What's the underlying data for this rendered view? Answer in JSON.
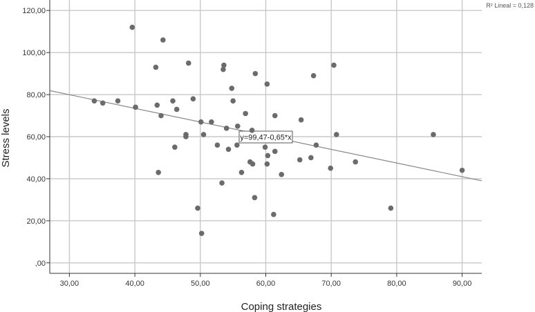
{
  "chart_data": {
    "type": "scatter",
    "title": "",
    "xlabel": "Coping strategies",
    "ylabel": "Stress levels",
    "xlim": [
      27,
      93
    ],
    "ylim": [
      -5,
      125
    ],
    "xticks": [
      30,
      40,
      50,
      60,
      70,
      80,
      90
    ],
    "yticks": [
      0,
      20,
      40,
      60,
      80,
      100,
      120
    ],
    "x_tick_labels": [
      "30,00",
      "40,00",
      "50,00",
      "60,00",
      "70,00",
      "80,00",
      "90,00"
    ],
    "y_tick_labels": [
      ",00",
      "20,00",
      "40,00",
      "60,00",
      "80,00",
      "100,00",
      "120,00"
    ],
    "grid": true,
    "r2_label": "R² Lineal = 0,128",
    "fit_line": {
      "label": "y=99,47-0,65*x",
      "intercept": 99.47,
      "slope": -0.65
    },
    "point_color": "#6b6b6b",
    "line_color": "#888888",
    "points": [
      [
        33.8,
        77
      ],
      [
        35.1,
        76
      ],
      [
        37.4,
        77
      ],
      [
        39.6,
        112
      ],
      [
        40.1,
        74
      ],
      [
        43.2,
        93
      ],
      [
        43.4,
        75
      ],
      [
        43.6,
        43
      ],
      [
        44.0,
        70
      ],
      [
        44.3,
        106
      ],
      [
        45.8,
        77
      ],
      [
        46.1,
        55
      ],
      [
        46.4,
        73
      ],
      [
        47.8,
        61
      ],
      [
        47.8,
        60
      ],
      [
        48.2,
        95
      ],
      [
        48.9,
        78
      ],
      [
        49.6,
        26
      ],
      [
        50.1,
        67
      ],
      [
        50.2,
        14
      ],
      [
        50.5,
        61
      ],
      [
        51.7,
        67
      ],
      [
        52.6,
        56
      ],
      [
        53.3,
        38
      ],
      [
        53.5,
        92
      ],
      [
        53.6,
        94
      ],
      [
        54.0,
        64
      ],
      [
        54.3,
        54
      ],
      [
        54.8,
        83
      ],
      [
        55.0,
        77
      ],
      [
        55.6,
        56
      ],
      [
        55.7,
        65
      ],
      [
        56.3,
        43
      ],
      [
        56.9,
        71
      ],
      [
        57.6,
        48
      ],
      [
        57.9,
        63
      ],
      [
        58.0,
        47
      ],
      [
        58.3,
        31
      ],
      [
        58.4,
        90
      ],
      [
        59.9,
        55
      ],
      [
        60.2,
        85
      ],
      [
        60.2,
        47
      ],
      [
        60.3,
        51
      ],
      [
        61.2,
        23
      ],
      [
        61.4,
        53
      ],
      [
        61.4,
        70
      ],
      [
        62.4,
        42
      ],
      [
        65.2,
        49
      ],
      [
        65.4,
        68
      ],
      [
        66.9,
        50
      ],
      [
        67.3,
        89
      ],
      [
        67.7,
        56
      ],
      [
        69.9,
        45
      ],
      [
        70.4,
        94
      ],
      [
        70.8,
        61
      ],
      [
        73.7,
        48
      ],
      [
        79.1,
        26
      ],
      [
        85.6,
        61
      ],
      [
        90.0,
        44
      ]
    ]
  }
}
